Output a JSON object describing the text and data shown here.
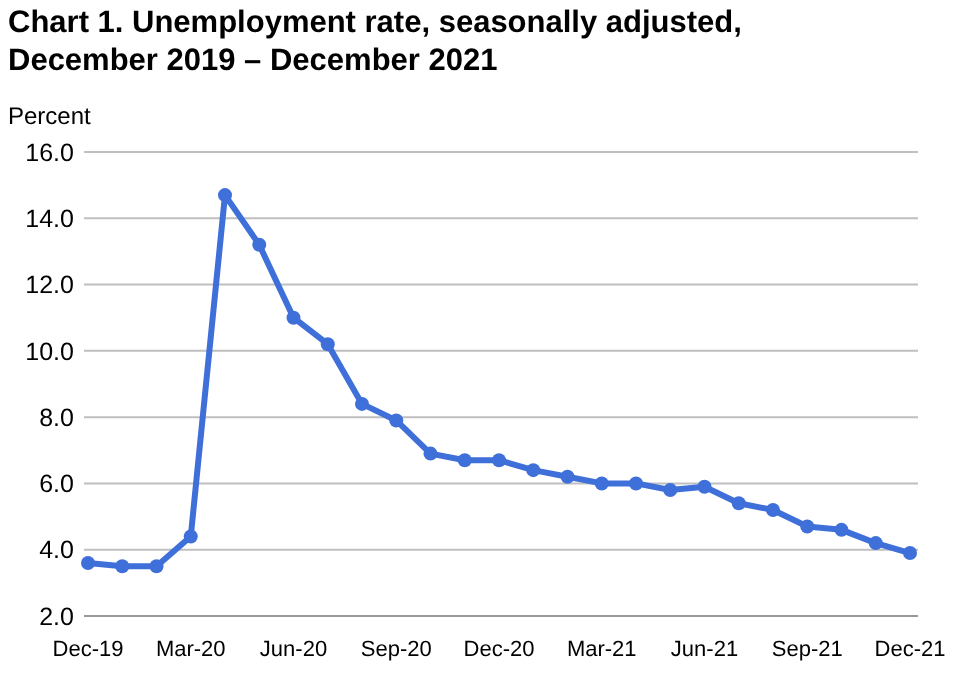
{
  "chart_data": {
    "type": "line",
    "title": "Chart 1. Unemployment rate, seasonally adjusted, December 2019 – December 2021",
    "ylabel": "Percent",
    "categories": [
      "Dec-19",
      null,
      null,
      "Mar-20",
      null,
      null,
      "Jun-20",
      null,
      null,
      "Sep-20",
      null,
      null,
      "Dec-20",
      null,
      null,
      "Mar-21",
      null,
      null,
      "Jun-21",
      null,
      null,
      "Sep-21",
      null,
      null,
      "Dec-21"
    ],
    "series": [
      {
        "color": "#3f6fd8",
        "values": [
          3.6,
          3.5,
          3.5,
          4.4,
          14.7,
          13.2,
          11.0,
          10.2,
          8.4,
          7.9,
          6.9,
          6.7,
          6.7,
          6.4,
          6.2,
          6.0,
          6.0,
          5.8,
          5.9,
          5.4,
          5.2,
          4.7,
          4.6,
          4.2,
          3.9
        ]
      }
    ],
    "ylim": [
      2,
      16
    ],
    "yticks": [
      {
        "value": 2,
        "label": "2.0"
      },
      {
        "value": 4,
        "label": "4.0"
      },
      {
        "value": 6,
        "label": "6.0"
      },
      {
        "value": 8,
        "label": "8.0"
      },
      {
        "value": 10,
        "label": "10.0"
      },
      {
        "value": 12,
        "label": "12.0"
      },
      {
        "value": 14,
        "label": "14.0"
      },
      {
        "value": 16,
        "label": "16.0"
      }
    ],
    "grid": "y",
    "marker": "circle",
    "line_style": "solid"
  }
}
